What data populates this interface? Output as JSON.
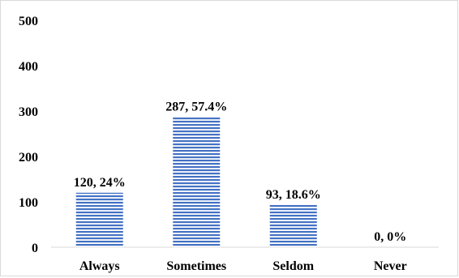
{
  "chart_data": {
    "type": "bar",
    "categories": [
      "Always",
      "Sometimes",
      "Seldom",
      "Never"
    ],
    "values": [
      120,
      287,
      93,
      0
    ],
    "data_labels": [
      "120, 24%",
      "287, 57.4%",
      "93, 18.6%",
      "0, 0%"
    ],
    "ylim": [
      0,
      500
    ],
    "yticks": [
      0,
      100,
      200,
      300,
      400,
      500
    ],
    "title": "",
    "xlabel": "",
    "ylabel": "",
    "grid": false,
    "legend": "none",
    "bar_color": "#4472c4",
    "bar_pattern": "horizontal-stripes"
  }
}
